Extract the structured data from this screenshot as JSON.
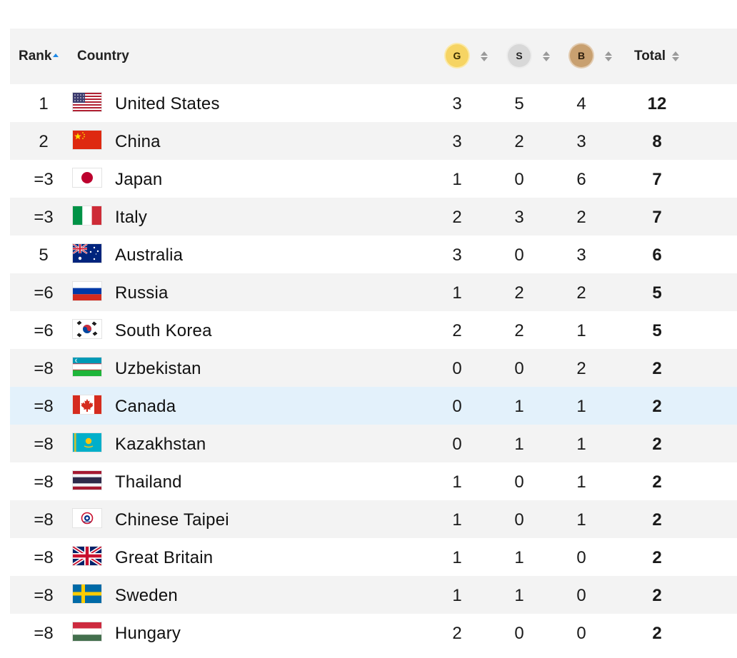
{
  "header": {
    "rank": "Rank",
    "country": "Country",
    "gold": "G",
    "silver": "S",
    "bronze": "B",
    "total": "Total"
  },
  "colors": {
    "gold": "#f6d463",
    "silver": "#d8d8d8",
    "bronze": "#c8a070",
    "highlight": "#e3f1fb",
    "sort_active": "#1e88e5"
  },
  "rows": [
    {
      "rank": "1",
      "country": "United States",
      "flag": "us-flag",
      "g": "3",
      "s": "5",
      "b": "4",
      "total": "12"
    },
    {
      "rank": "2",
      "country": "China",
      "flag": "china-flag",
      "g": "3",
      "s": "2",
      "b": "3",
      "total": "8"
    },
    {
      "rank": "=3",
      "country": "Japan",
      "flag": "japan-flag",
      "g": "1",
      "s": "0",
      "b": "6",
      "total": "7"
    },
    {
      "rank": "=3",
      "country": "Italy",
      "flag": "italy-flag",
      "g": "2",
      "s": "3",
      "b": "2",
      "total": "7"
    },
    {
      "rank": "5",
      "country": "Australia",
      "flag": "australia-flag",
      "g": "3",
      "s": "0",
      "b": "3",
      "total": "6"
    },
    {
      "rank": "=6",
      "country": "Russia",
      "flag": "russia-flag",
      "g": "1",
      "s": "2",
      "b": "2",
      "total": "5"
    },
    {
      "rank": "=6",
      "country": "South Korea",
      "flag": "south-korea-flag",
      "g": "2",
      "s": "2",
      "b": "1",
      "total": "5"
    },
    {
      "rank": "=8",
      "country": "Uzbekistan",
      "flag": "uzbekistan-flag",
      "g": "0",
      "s": "0",
      "b": "2",
      "total": "2"
    },
    {
      "rank": "=8",
      "country": "Canada",
      "flag": "canada-flag",
      "g": "0",
      "s": "1",
      "b": "1",
      "total": "2"
    },
    {
      "rank": "=8",
      "country": "Kazakhstan",
      "flag": "kazakhstan-flag",
      "g": "0",
      "s": "1",
      "b": "1",
      "total": "2"
    },
    {
      "rank": "=8",
      "country": "Thailand",
      "flag": "thailand-flag",
      "g": "1",
      "s": "0",
      "b": "1",
      "total": "2"
    },
    {
      "rank": "=8",
      "country": "Chinese Taipei",
      "flag": "chinese-taipei-flag",
      "g": "1",
      "s": "0",
      "b": "1",
      "total": "2"
    },
    {
      "rank": "=8",
      "country": "Great Britain",
      "flag": "great-britain-flag",
      "g": "1",
      "s": "1",
      "b": "0",
      "total": "2"
    },
    {
      "rank": "=8",
      "country": "Sweden",
      "flag": "sweden-flag",
      "g": "1",
      "s": "1",
      "b": "0",
      "total": "2"
    },
    {
      "rank": "=8",
      "country": "Hungary",
      "flag": "hungary-flag",
      "g": "2",
      "s": "0",
      "b": "0",
      "total": "2"
    }
  ]
}
